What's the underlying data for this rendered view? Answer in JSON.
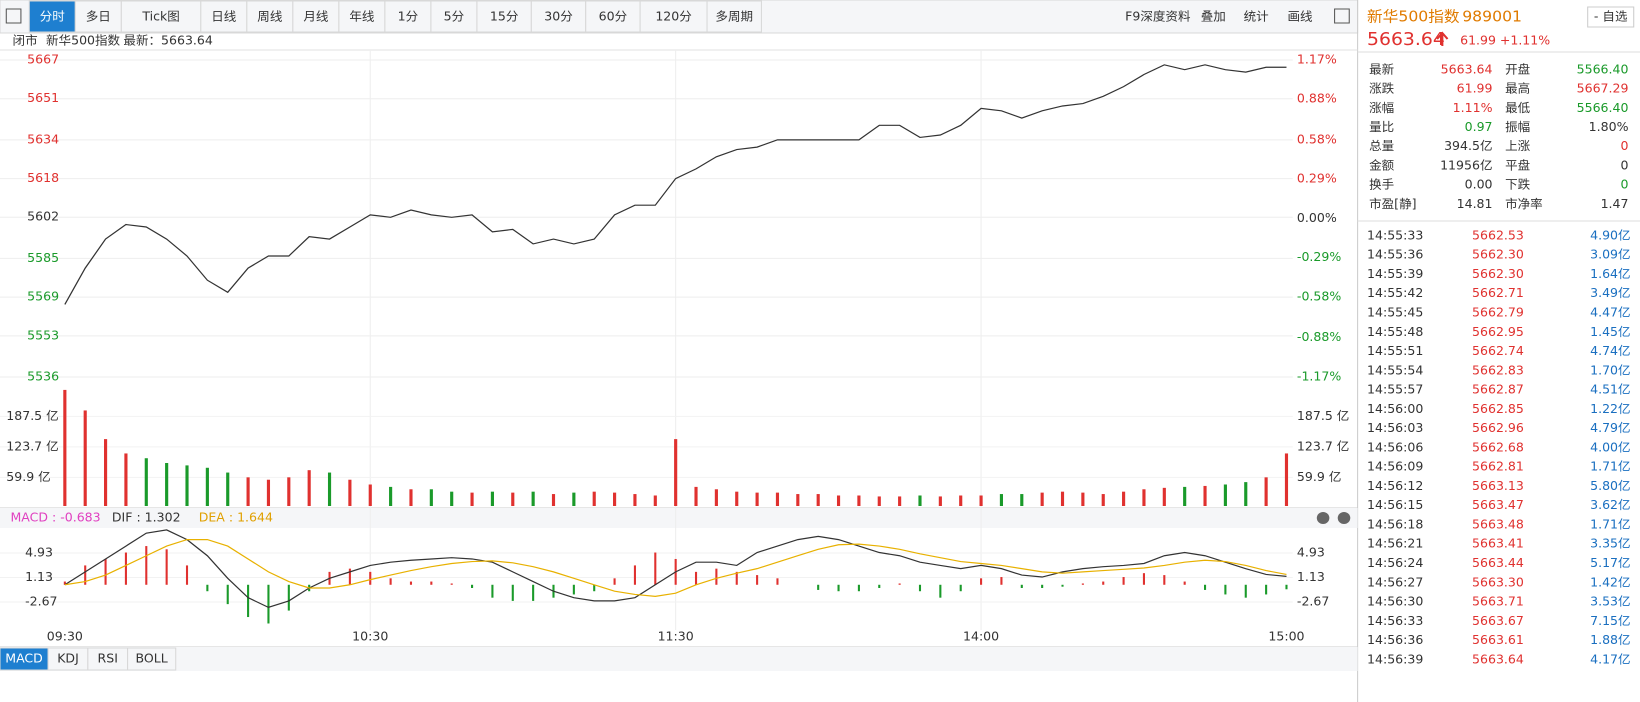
{
  "toolbar": {
    "left": [
      "分时",
      "多日",
      "Tick图",
      "日线",
      "周线",
      "月线",
      "年线",
      "1分",
      "5分",
      "15分",
      "30分",
      "60分",
      "120分",
      "多周期"
    ],
    "right": [
      "F9深度资料",
      "叠加",
      "统计",
      "画线"
    ]
  },
  "info": {
    "status": "闭市",
    "name": "新华500指数",
    "latest_label": "最新：5663.64"
  },
  "chart_data": [
    {
      "type": "line",
      "color": "#333333",
      "values": [
        5566,
        5581,
        5593,
        5599,
        5598,
        5593,
        5586,
        5576,
        5571,
        5581,
        5586,
        5586,
        5594,
        5593,
        5598,
        5603,
        5602,
        5605,
        5603,
        5602,
        5603,
        5596,
        5597,
        5591,
        5593,
        5591,
        5593,
        5603,
        5607,
        5607,
        5618,
        5622,
        5627,
        5630,
        5631,
        5634,
        5634,
        5634,
        5634,
        5634,
        5640,
        5640,
        5635,
        5636,
        5640,
        5647,
        5646,
        5643,
        5646,
        5648,
        5649,
        5652,
        5656,
        5661,
        5665,
        5663,
        5665,
        5663,
        5662,
        5664,
        5664
      ],
      "ylim": [
        5536,
        5667
      ],
      "yticks": [
        5667,
        5651,
        5634,
        5618,
        5602,
        5585,
        5569,
        5553,
        5536
      ],
      "y2lim": [
        -1.17,
        1.17
      ],
      "y2ticks": [
        {
          "value": 1.17,
          "label": "1.17%"
        },
        {
          "value": 0.88,
          "label": "0.88%"
        },
        {
          "value": 0.58,
          "label": "0.58%"
        },
        {
          "value": 0.29,
          "label": "0.29%"
        },
        {
          "value": 0,
          "label": "0.00%"
        },
        {
          "value": -0.29,
          "label": "-0.29%"
        },
        {
          "value": -0.58,
          "label": "-0.58%"
        },
        {
          "value": -0.88,
          "label": "-0.88%"
        },
        {
          "value": -1.17,
          "label": "-1.17%"
        }
      ],
      "xticks": [
        "09:30",
        "10:30",
        "11:30",
        "14:00",
        "15:00"
      ],
      "grid": true
    },
    {
      "type": "bar",
      "up_color": "#e0312f",
      "down_color": "#1a9a2a",
      "values": [
        243,
        200,
        140,
        110,
        100,
        90,
        85,
        80,
        70,
        60,
        55,
        60,
        75,
        70,
        55,
        45,
        40,
        35,
        35,
        30,
        28,
        30,
        28,
        30,
        25,
        28,
        30,
        28,
        25,
        22,
        140,
        40,
        35,
        30,
        28,
        28,
        25,
        25,
        22,
        22,
        20,
        20,
        22,
        20,
        22,
        22,
        25,
        25,
        28,
        30,
        28,
        25,
        30,
        35,
        38,
        40,
        42,
        45,
        50,
        60,
        110
      ],
      "ylim": [
        0,
        247
      ],
      "yticks": [
        {
          "value": 187.5,
          "label": "187.5 亿"
        },
        {
          "value": 123.7,
          "label": "123.7 亿"
        },
        {
          "value": 59.9,
          "label": "59.9 亿"
        }
      ]
    },
    {
      "type": "macd",
      "legend": [
        "MACD : -0.683",
        "DIF : 1.302",
        "DEA : 1.644"
      ],
      "ylim": [
        -6.7,
        8.8
      ],
      "yticks": [
        4.93,
        1.13,
        -2.67
      ],
      "series": [
        {
          "name": "MACD",
          "color": "#e0312f",
          "values": [
            0.5,
            3,
            4,
            5,
            6,
            5.5,
            3,
            -1,
            -3,
            -5,
            -6,
            -4,
            -1,
            2,
            2.5,
            2,
            1,
            0.5,
            0.5,
            0.2,
            -0.5,
            -2,
            -2.5,
            -2.5,
            -2,
            -1.5,
            -1,
            1,
            3,
            5,
            4,
            2,
            2.5,
            2,
            1.5,
            1,
            0,
            -0.8,
            -1,
            -1,
            -0.5,
            0.2,
            -1,
            -2,
            -1,
            1,
            1.2,
            -0.5,
            -0.5,
            -0.3,
            0.2,
            0.5,
            1.2,
            1.8,
            1.5,
            0.5,
            -0.8,
            -1.5,
            -2,
            -1.5,
            -0.7
          ]
        },
        {
          "name": "DIF",
          "color": "#333333",
          "values": [
            0,
            2,
            4,
            6,
            8,
            8.5,
            7,
            4.5,
            1,
            -2,
            -3.5,
            -2.5,
            -0.5,
            1,
            2,
            3,
            3.5,
            3.8,
            4,
            4.2,
            4,
            3.5,
            2,
            0.5,
            -1,
            -2,
            -2.5,
            -2.5,
            -2,
            0,
            2,
            3.5,
            3.5,
            3,
            5,
            6,
            7,
            7.5,
            7,
            6,
            5,
            4.5,
            3.5,
            3,
            2.5,
            3,
            2.5,
            1.5,
            1.2,
            2,
            2.5,
            2.8,
            3,
            3.3,
            4.5,
            5,
            4.5,
            3.5,
            2.5,
            1.6,
            1.3
          ]
        },
        {
          "name": "DEA",
          "color": "#e8b100",
          "values": [
            0,
            0.5,
            1.5,
            3,
            4.5,
            6,
            7,
            7,
            6,
            4,
            2,
            0.5,
            -0.5,
            -0.5,
            0,
            0.8,
            1.5,
            2.2,
            2.8,
            3.3,
            3.6,
            3.7,
            3.4,
            2.8,
            2,
            1,
            0,
            -1,
            -1.5,
            -1.8,
            -1.3,
            0,
            1,
            1.8,
            2.5,
            3.5,
            4.5,
            5.5,
            6.2,
            6.3,
            6,
            5.5,
            4.8,
            4.2,
            3.6,
            3.3,
            3,
            2.5,
            2,
            1.8,
            2,
            2.2,
            2.4,
            2.6,
            3,
            3.5,
            3.8,
            3.6,
            3,
            2.2,
            1.6
          ]
        }
      ]
    }
  ],
  "quote": {
    "name": "新华500指数",
    "code": "989001",
    "price": "5663.64",
    "change": "61.99",
    "change_pct": "+1.11%",
    "button": "- 自选"
  },
  "stats": [
    [
      {
        "t": "最新"
      },
      {
        "t": "5663.64",
        "c": "#e0312f"
      },
      {
        "t": "开盘"
      },
      {
        "t": "5566.40",
        "c": "#1a9a2a"
      }
    ],
    [
      {
        "t": "涨跌"
      },
      {
        "t": "61.99",
        "c": "#e0312f"
      },
      {
        "t": "最高"
      },
      {
        "t": "5667.29",
        "c": "#e0312f"
      }
    ],
    [
      {
        "t": "涨幅"
      },
      {
        "t": "1.11%",
        "c": "#e0312f"
      },
      {
        "t": "最低"
      },
      {
        "t": "5566.40",
        "c": "#1a9a2a"
      }
    ],
    [
      {
        "t": "量比"
      },
      {
        "t": "0.97",
        "c": "#1a9a2a"
      },
      {
        "t": "振幅"
      },
      {
        "t": "1.80%",
        "c": "#333"
      }
    ],
    [
      {
        "t": "总量"
      },
      {
        "t": "394.5亿",
        "c": "#333"
      },
      {
        "t": "上涨"
      },
      {
        "t": "0",
        "c": "#e0312f"
      }
    ],
    [
      {
        "t": "金额"
      },
      {
        "t": "11956亿",
        "c": "#333"
      },
      {
        "t": "平盘"
      },
      {
        "t": "0",
        "c": "#333"
      }
    ],
    [
      {
        "t": "换手"
      },
      {
        "t": "0.00",
        "c": "#333"
      },
      {
        "t": "下跌"
      },
      {
        "t": "0",
        "c": "#1a9a2a"
      }
    ],
    [
      {
        "t": "市盈[静]"
      },
      {
        "t": "14.81",
        "c": "#333"
      },
      {
        "t": "市净率"
      },
      {
        "t": "1.47",
        "c": "#333"
      }
    ]
  ],
  "trades": [
    [
      "14:55:33",
      "5662.53",
      "4.90亿"
    ],
    [
      "14:55:36",
      "5662.30",
      "3.09亿"
    ],
    [
      "14:55:39",
      "5662.30",
      "1.64亿"
    ],
    [
      "14:55:42",
      "5662.71",
      "3.49亿"
    ],
    [
      "14:55:45",
      "5662.79",
      "4.47亿"
    ],
    [
      "14:55:48",
      "5662.95",
      "1.45亿"
    ],
    [
      "14:55:51",
      "5662.74",
      "4.74亿"
    ],
    [
      "14:55:54",
      "5662.83",
      "1.70亿"
    ],
    [
      "14:55:57",
      "5662.87",
      "4.51亿"
    ],
    [
      "14:56:00",
      "5662.85",
      "1.22亿"
    ],
    [
      "14:56:03",
      "5662.96",
      "4.79亿"
    ],
    [
      "14:56:06",
      "5662.68",
      "4.00亿"
    ],
    [
      "14:56:09",
      "5662.81",
      "1.71亿"
    ],
    [
      "14:56:12",
      "5663.13",
      "5.80亿"
    ],
    [
      "14:56:15",
      "5663.47",
      "3.62亿"
    ],
    [
      "14:56:18",
      "5663.48",
      "1.71亿"
    ],
    [
      "14:56:21",
      "5663.41",
      "3.35亿"
    ],
    [
      "14:56:24",
      "5663.44",
      "5.17亿"
    ],
    [
      "14:56:27",
      "5663.30",
      "1.42亿"
    ],
    [
      "14:56:30",
      "5663.71",
      "3.53亿"
    ],
    [
      "14:56:33",
      "5663.67",
      "7.15亿"
    ],
    [
      "14:56:36",
      "5663.61",
      "1.88亿"
    ],
    [
      "14:56:39",
      "5663.64",
      "4.17亿"
    ]
  ],
  "tabs": [
    "MACD",
    "KDJ",
    "RSI",
    "BOLL"
  ]
}
